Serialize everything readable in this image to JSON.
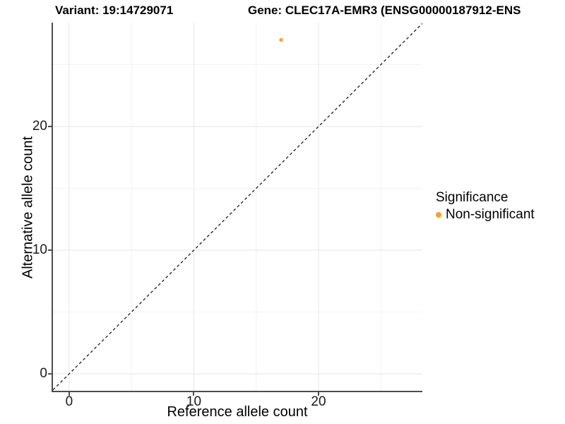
{
  "figure": {
    "title_variant": "Variant: 19:14729071",
    "title_gene": "Gene: CLEC17A-EMR3 (ENSG00000187912-ENS",
    "legend": {
      "title": "Significance",
      "items": [
        {
          "label": "Non-significant",
          "color": "#F9A12B"
        }
      ]
    }
  },
  "chart_data": {
    "type": "scatter",
    "title": "Variant: 19:14729071 / Gene: CLEC17A-EMR3 (ENSG00000187912-ENS…)",
    "xlabel": "Reference allele count",
    "ylabel": "Alternative allele count",
    "xlim": [
      -1.3,
      28.33
    ],
    "ylim": [
      -1.37,
      28.4
    ],
    "x_ticks": [
      0,
      10,
      20
    ],
    "y_ticks": [
      0,
      10,
      20
    ],
    "x_minor_gridlines": [
      5,
      15,
      25
    ],
    "y_minor_gridlines": [
      5,
      15,
      25
    ],
    "grid": true,
    "legend_position": "right",
    "reference_line": {
      "type": "identity",
      "equation": "y = x",
      "style": "dashed",
      "color": "#1a1a1a"
    },
    "series": [
      {
        "name": "Non-significant",
        "color": "#F9A12B",
        "points": [
          {
            "x": 17,
            "y": 27
          }
        ]
      }
    ]
  },
  "colors": {
    "background": "#ffffff",
    "axis_line": "#4d4d4d",
    "major_gridline": "#e6e6e6",
    "minor_gridline": "#f2f2f2",
    "text": "#1a1a1a",
    "point_orange": "#F9A12B"
  }
}
